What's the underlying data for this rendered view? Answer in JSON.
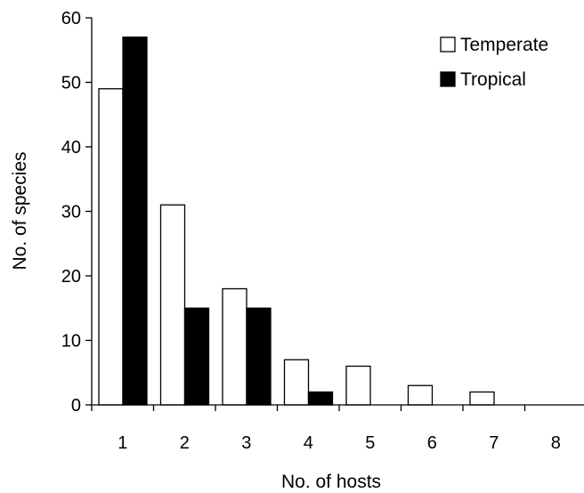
{
  "chart_data": {
    "type": "bar",
    "xlabel": "No. of hosts",
    "ylabel": "No. of species",
    "categories": [
      "1",
      "2",
      "3",
      "4",
      "5",
      "6",
      "7",
      "8"
    ],
    "series": [
      {
        "name": "Temperate",
        "values": [
          49,
          31,
          18,
          7,
          6,
          3,
          2,
          0
        ],
        "fill": "#ffffff",
        "stroke": "#000000"
      },
      {
        "name": "Tropical",
        "values": [
          57,
          15,
          15,
          2,
          0,
          0,
          0,
          0
        ],
        "fill": "#000000",
        "stroke": "#000000"
      }
    ],
    "ylim": [
      0,
      60
    ],
    "yticks": [
      0,
      10,
      20,
      30,
      40,
      50,
      60
    ],
    "legend_position": "top-right",
    "grid": false
  }
}
